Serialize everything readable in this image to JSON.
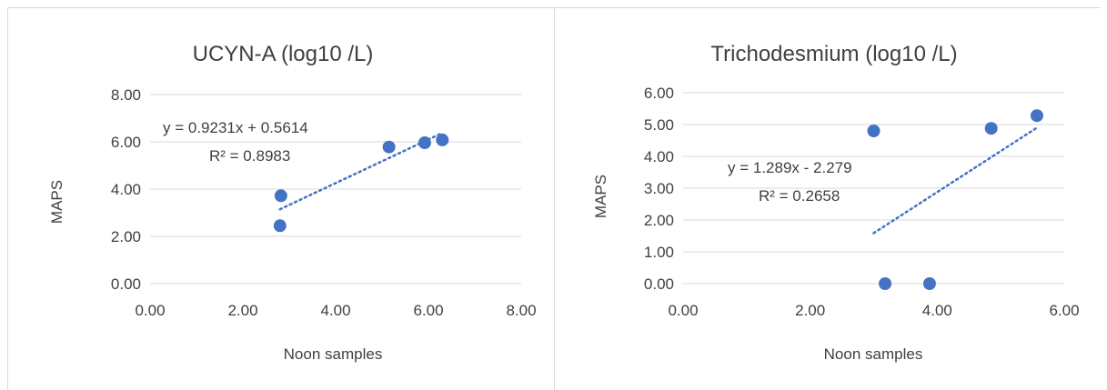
{
  "chart_data": [
    {
      "type": "scatter",
      "title": "UCYN-A (log10 /L)",
      "xlabel": "Noon samples",
      "ylabel": "MAPS",
      "xlim": [
        0,
        8
      ],
      "ylim": [
        0,
        8
      ],
      "xticks": [
        "0.00",
        "2.00",
        "4.00",
        "6.00",
        "8.00"
      ],
      "yticks": [
        "0.00",
        "2.00",
        "4.00",
        "6.00",
        "8.00"
      ],
      "points": [
        {
          "x": 2.8,
          "y": 2.45
        },
        {
          "x": 2.82,
          "y": 3.72
        },
        {
          "x": 5.15,
          "y": 5.78
        },
        {
          "x": 5.92,
          "y": 5.96
        },
        {
          "x": 6.3,
          "y": 6.08
        }
      ],
      "trendline": {
        "type": "linear",
        "slope": 0.9231,
        "intercept": 0.5614,
        "x_range": [
          2.8,
          6.3
        ]
      },
      "equation_label": "y = 0.9231x + 0.5614",
      "r2_label": "R² = 0.8983",
      "grid": true,
      "marker_color": "#4472c4"
    },
    {
      "type": "scatter",
      "title": "Trichodesmium (log10 /L)",
      "xlabel": "Noon samples",
      "ylabel": "MAPS",
      "xlim": [
        0,
        6
      ],
      "ylim": [
        0,
        6
      ],
      "xticks": [
        "0.00",
        "2.00",
        "4.00",
        "6.00"
      ],
      "yticks": [
        "0.00",
        "1.00",
        "2.00",
        "3.00",
        "4.00",
        "5.00",
        "6.00"
      ],
      "points": [
        {
          "x": 3.0,
          "y": 4.8
        },
        {
          "x": 3.18,
          "y": 0.0
        },
        {
          "x": 3.88,
          "y": 0.0
        },
        {
          "x": 4.85,
          "y": 4.88
        },
        {
          "x": 5.57,
          "y": 5.28
        }
      ],
      "trendline": {
        "type": "linear",
        "slope": 1.289,
        "intercept": -2.279,
        "x_range": [
          3.0,
          5.57
        ]
      },
      "equation_label": "y = 1.289x - 2.279",
      "r2_label": "R² = 0.2658",
      "grid": true,
      "marker_color": "#4472c4"
    }
  ]
}
